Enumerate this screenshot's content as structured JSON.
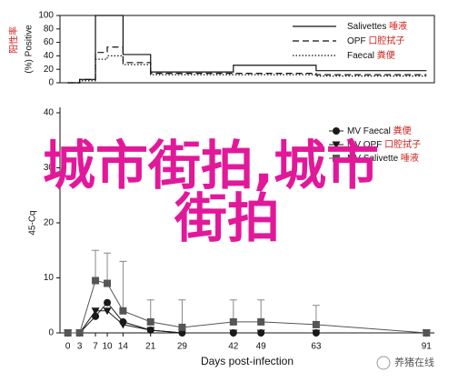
{
  "chart_data": [
    {
      "type": "step",
      "ylabel_cn": "阳性率",
      "ylabel": "(%) Positive",
      "xlim": [
        -2,
        93
      ],
      "ylim": [
        0,
        100
      ],
      "yticks": [
        0,
        20,
        40,
        60,
        80,
        100
      ],
      "series": [
        {
          "name": "Salivettes 唾液",
          "color": "#111",
          "dash": "none",
          "x": [
            0,
            3,
            7,
            14,
            21,
            42,
            63,
            91
          ],
          "values": [
            0,
            5,
            100,
            42,
            16,
            26,
            18,
            18
          ]
        },
        {
          "name": "OPF 口腔拭子",
          "color": "#111",
          "dash": "7 4",
          "x": [
            0,
            3,
            7,
            10,
            14,
            21,
            42,
            63,
            91
          ],
          "values": [
            0,
            5,
            45,
            53,
            30,
            14,
            14,
            12,
            12
          ]
        },
        {
          "name": "Faecal 粪便",
          "color": "#111",
          "dash": "1.5 2",
          "x": [
            0,
            3,
            7,
            10,
            14,
            21,
            42,
            63,
            91
          ],
          "values": [
            0,
            3,
            35,
            40,
            27,
            12,
            12,
            10,
            10
          ]
        }
      ]
    },
    {
      "type": "line",
      "xlabel": "Days post-infection",
      "ylabel": "45-Cq",
      "xlim": [
        -2,
        93
      ],
      "xticks": [
        0,
        3,
        7,
        10,
        14,
        21,
        29,
        42,
        49,
        63,
        91
      ],
      "ylim": [
        0,
        40
      ],
      "yticks": [
        0,
        10,
        20,
        30,
        40
      ],
      "x": [
        0,
        3,
        7,
        10,
        14,
        21,
        29,
        42,
        49,
        63,
        91
      ],
      "series": [
        {
          "name": "MV Faecal 粪便",
          "color": "#1a1a1a",
          "marker": "circle",
          "values": [
            0,
            0,
            3,
            5.5,
            2,
            0.5,
            0,
            0,
            0,
            0,
            0
          ]
        },
        {
          "name": "MV OPF 口腔拭子",
          "color": "#1a1a1a",
          "marker": "triangle",
          "values": [
            0,
            0,
            4,
            4,
            1.5,
            0.5,
            0,
            0,
            0,
            0,
            0
          ]
        },
        {
          "name": "MV Salivette 唾液",
          "color": "#555",
          "marker": "square",
          "values": [
            0,
            0,
            9.5,
            9,
            4,
            2,
            1,
            2,
            2,
            1.5,
            0
          ],
          "errors": [
            null,
            null,
            5.5,
            5.5,
            9,
            4,
            5,
            4,
            4,
            3.5,
            null
          ]
        }
      ]
    }
  ],
  "overlay": {
    "line1": "城市街拍,城市",
    "line2": "街拍"
  },
  "watermark": "养猪在线"
}
